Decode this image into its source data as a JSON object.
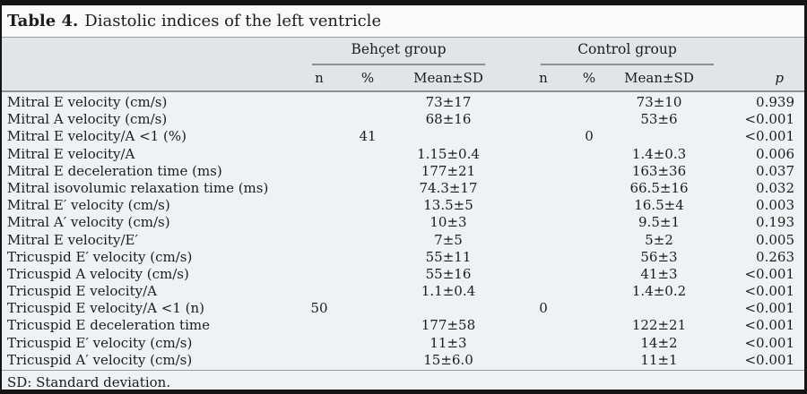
{
  "title": {
    "label": "Table 4.",
    "text": "Diastolic indices of the left ventricle"
  },
  "header": {
    "groups": [
      {
        "name": "Behçet group"
      },
      {
        "name": "Control group"
      }
    ],
    "subcolumns": [
      "n",
      "%",
      "Mean±SD"
    ],
    "p_label": "p"
  },
  "rows": [
    {
      "label": "Mitral E velocity (cm/s)",
      "b_n": "",
      "b_pct": "",
      "b_mean": "73±17",
      "c_n": "",
      "c_pct": "",
      "c_mean": "73±10",
      "p": "0.939"
    },
    {
      "label": "Mitral A velocity (cm/s)",
      "b_n": "",
      "b_pct": "",
      "b_mean": "68±16",
      "c_n": "",
      "c_pct": "",
      "c_mean": "53±6",
      "p": "<0.001"
    },
    {
      "label": "Mitral E velocity/A <1 (%)",
      "b_n": "",
      "b_pct": "41",
      "b_mean": "",
      "c_n": "",
      "c_pct": "0",
      "c_mean": "",
      "p": "<0.001"
    },
    {
      "label": "Mitral E velocity/A",
      "b_n": "",
      "b_pct": "",
      "b_mean": "1.15±0.4",
      "c_n": "",
      "c_pct": "",
      "c_mean": "1.4±0.3",
      "p": "0.006"
    },
    {
      "label": "Mitral E deceleration time (ms)",
      "b_n": "",
      "b_pct": "",
      "b_mean": "177±21",
      "c_n": "",
      "c_pct": "",
      "c_mean": "163±36",
      "p": "0.037"
    },
    {
      "label": "Mitral isovolumic relaxation time (ms)",
      "b_n": "",
      "b_pct": "",
      "b_mean": "74.3±17",
      "c_n": "",
      "c_pct": "",
      "c_mean": "66.5±16",
      "p": "0.032"
    },
    {
      "label": "Mitral E′ velocity (cm/s)",
      "b_n": "",
      "b_pct": "",
      "b_mean": "13.5±5",
      "c_n": "",
      "c_pct": "",
      "c_mean": "16.5±4",
      "p": "0.003"
    },
    {
      "label": "Mitral A′ velocity (cm/s)",
      "b_n": "",
      "b_pct": "",
      "b_mean": "10±3",
      "c_n": "",
      "c_pct": "",
      "c_mean": "9.5±1",
      "p": "0.193"
    },
    {
      "label": "Mitral E velocity/E′",
      "b_n": "",
      "b_pct": "",
      "b_mean": "7±5",
      "c_n": "",
      "c_pct": "",
      "c_mean": "5±2",
      "p": "0.005"
    },
    {
      "label": "Tricuspid E′ velocity (cm/s)",
      "b_n": "",
      "b_pct": "",
      "b_mean": "55±11",
      "c_n": "",
      "c_pct": "",
      "c_mean": "56±3",
      "p": "0.263"
    },
    {
      "label": "Tricuspid A velocity (cm/s)",
      "b_n": "",
      "b_pct": "",
      "b_mean": "55±16",
      "c_n": "",
      "c_pct": "",
      "c_mean": "41±3",
      "p": "<0.001"
    },
    {
      "label": "Tricuspid E velocity/A",
      "b_n": "",
      "b_pct": "",
      "b_mean": "1.1±0.4",
      "c_n": "",
      "c_pct": "",
      "c_mean": "1.4±0.2",
      "p": "<0.001"
    },
    {
      "label": "Tricuspid E velocity/A <1 (n)",
      "b_n": "50",
      "b_pct": "",
      "b_mean": "",
      "c_n": "0",
      "c_pct": "",
      "c_mean": "",
      "p": "<0.001"
    },
    {
      "label": "Tricuspid E deceleration time",
      "b_n": "",
      "b_pct": "",
      "b_mean": "177±58",
      "c_n": "",
      "c_pct": "",
      "c_mean": "122±21",
      "p": "<0.001"
    },
    {
      "label": "Tricuspid E′ velocity (cm/s)",
      "b_n": "",
      "b_pct": "",
      "b_mean": "11±3",
      "c_n": "",
      "c_pct": "",
      "c_mean": "14±2",
      "p": "<0.001"
    },
    {
      "label": "Tricuspid A′ velocity (cm/s)",
      "b_n": "",
      "b_pct": "",
      "b_mean": "15±6.0",
      "c_n": "",
      "c_pct": "",
      "c_mean": "11±1",
      "p": "<0.001"
    }
  ],
  "footer": "SD: Standard deviation.",
  "colors": {
    "frame_border": "#141414",
    "header_bg": "#e3e4e6",
    "body_bg": "#f0f1f2",
    "rule_line": "#8f8f8f"
  }
}
